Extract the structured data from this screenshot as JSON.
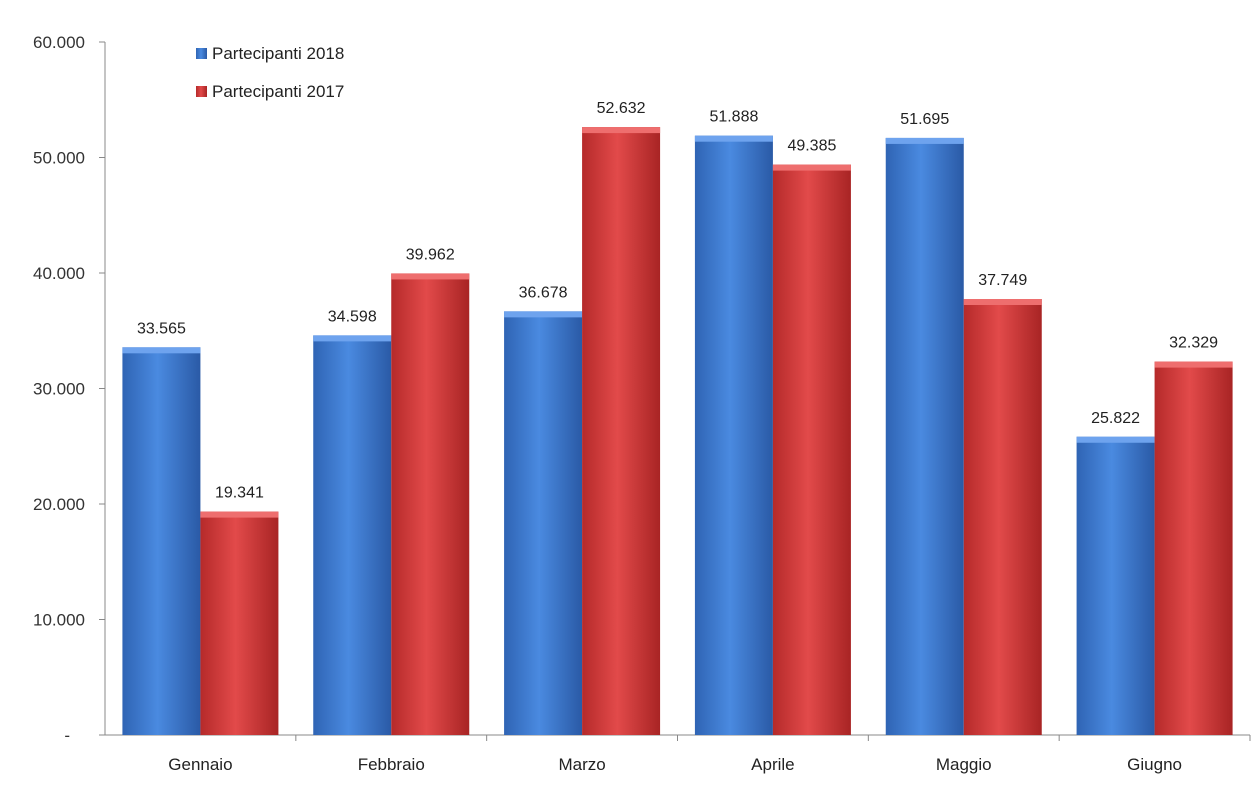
{
  "chart_data": {
    "type": "bar",
    "categories": [
      "Gennaio",
      "Febbraio",
      "Marzo",
      "Aprile",
      "Maggio",
      "Giugno"
    ],
    "series": [
      {
        "name": "Partecipanti 2018",
        "values": [
          33565,
          34598,
          36678,
          51888,
          51695,
          25822
        ],
        "labels": [
          "33.565",
          "34.598",
          "36.678",
          "51.888",
          "51.695",
          "25.822"
        ],
        "color": "#3a78d0"
      },
      {
        "name": "Partecipanti 2017",
        "values": [
          19341,
          39962,
          52632,
          49385,
          37749,
          32329
        ],
        "labels": [
          "19.341",
          "39.962",
          "52.632",
          "49.385",
          "37.749",
          "32.329"
        ],
        "color": "#d03a3a"
      }
    ],
    "yticks": [
      "-",
      "10.000",
      "20.000",
      "30.000",
      "40.000",
      "50.000",
      "60.000"
    ],
    "ylim": [
      0,
      60000
    ],
    "legend_position": "top-left",
    "grid": false
  }
}
